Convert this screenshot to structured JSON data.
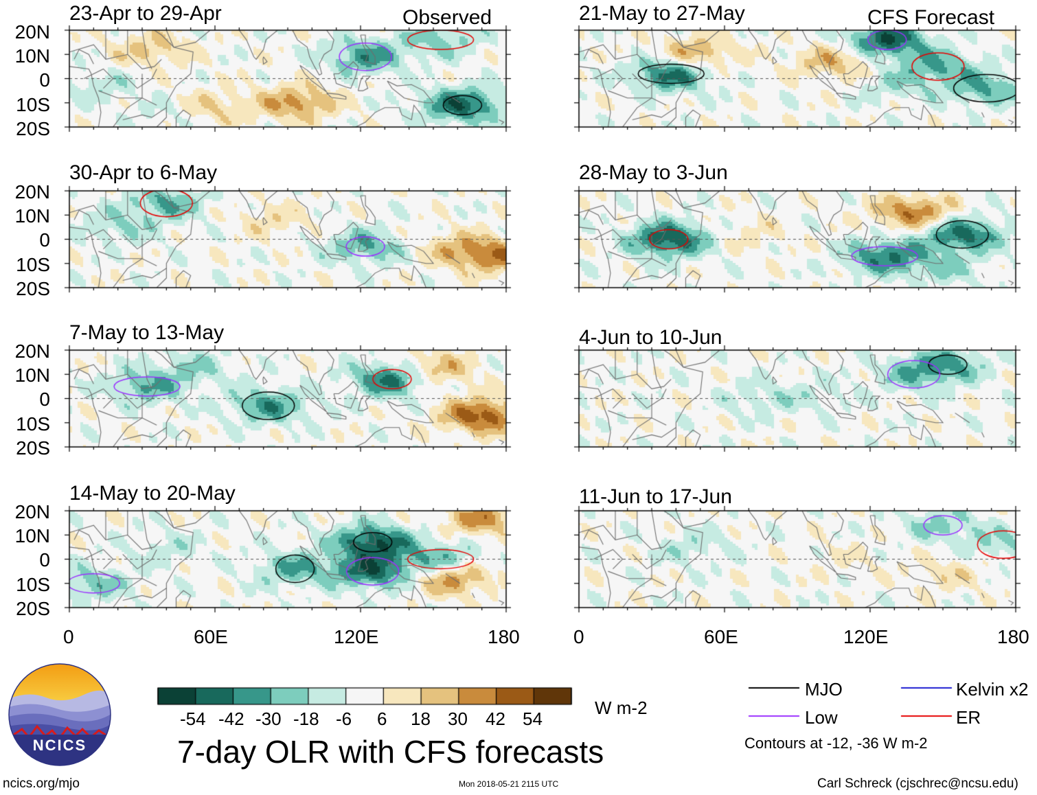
{
  "title": "7-day OLR with CFS forecasts",
  "column_labels": {
    "observed": "Observed",
    "forecast": "CFS Forecast"
  },
  "units": "W m-2",
  "footer": {
    "left": "ncics.org/mjo",
    "center": "Mon 2018-05-21 2115 UTC",
    "right": "Carl Schreck (cjschrec@ncsu.edu)"
  },
  "logo": {
    "text": "NCICS"
  },
  "contour_note": "Contours at -12, -36 W m-2",
  "colors": {
    "map_line": "#6e6e6e",
    "scale": [
      "#0b4136",
      "#18695c",
      "#37978a",
      "#7dcdbd",
      "#c6ebe2",
      "#f6f6f6",
      "#f7e7be",
      "#e5c27e",
      "#c98b3c",
      "#9b5a16",
      "#603609"
    ],
    "mjo": "#000000",
    "low": "#9b30ff",
    "kelvin": "#1b1bd0",
    "er": "#e60000"
  },
  "legend": [
    {
      "name": "MJO",
      "color": "#000000"
    },
    {
      "name": "Kelvin x2",
      "color": "#1b1bd0"
    },
    {
      "name": "Low",
      "color": "#9b30ff"
    },
    {
      "name": "ER",
      "color": "#e60000"
    }
  ],
  "chart_data": {
    "type": "heatmap",
    "variable": "7-day OLR anomaly",
    "units": "W m-2",
    "x_ticks": [
      "0",
      "60E",
      "120E",
      "180"
    ],
    "x_values": [
      0,
      60,
      120,
      180
    ],
    "y_ticks": [
      "20N",
      "10N",
      "0",
      "10S",
      "20S"
    ],
    "y_values": [
      20,
      10,
      0,
      -10,
      -20
    ],
    "xlim": [
      0,
      180
    ],
    "ylim": [
      -20,
      20
    ],
    "colorbar": {
      "levels": [
        -60,
        -48,
        -36,
        -24,
        -12,
        0,
        12,
        24,
        36,
        48,
        60
      ],
      "tick_labels": [
        "-54",
        "-42",
        "-30",
        "-18",
        "-6",
        "6",
        "18",
        "30",
        "42",
        "54"
      ]
    },
    "contour_levels": [
      -12,
      -36
    ],
    "panels": [
      {
        "period": "23-Apr to 29-Apr",
        "source": "Observed",
        "anomalies": [
          [
            162,
            -11,
            -50
          ],
          [
            122,
            9,
            -36
          ],
          [
            153,
            16,
            -24
          ],
          [
            94,
            -10,
            35
          ],
          [
            58,
            -12,
            22
          ],
          [
            34,
            12,
            22
          ],
          [
            13,
            -3,
            -14
          ],
          [
            44,
            -14,
            -12
          ]
        ]
      },
      {
        "period": "30-Apr to 6-May",
        "source": "Observed",
        "anomalies": [
          [
            122,
            -3,
            -30
          ],
          [
            40,
            15,
            -30
          ],
          [
            176,
            -7,
            36
          ],
          [
            160,
            -4,
            22
          ],
          [
            83,
            8,
            14
          ],
          [
            20,
            5,
            -18
          ]
        ]
      },
      {
        "period": "7-May to 13-May",
        "source": "Observed",
        "anomalies": [
          [
            133,
            8,
            -48
          ],
          [
            82,
            -3,
            -36
          ],
          [
            32,
            5,
            -30
          ],
          [
            170,
            -7,
            50
          ],
          [
            150,
            12,
            30
          ],
          [
            52,
            13,
            -18
          ]
        ]
      },
      {
        "period": "14-May to 20-May",
        "source": "Observed",
        "anomalies": [
          [
            125,
            7,
            -54
          ],
          [
            125,
            -5,
            -48
          ],
          [
            153,
            0,
            -30
          ],
          [
            93,
            -4,
            -30
          ],
          [
            10,
            -10,
            -24
          ],
          [
            170,
            17,
            34
          ],
          [
            158,
            -8,
            36
          ],
          [
            40,
            4,
            -12
          ]
        ]
      },
      {
        "period": "21-May to 27-May",
        "source": "CFS Forecast",
        "anomalies": [
          [
            127,
            16,
            -54
          ],
          [
            148,
            5,
            -30
          ],
          [
            38,
            2,
            -48
          ],
          [
            48,
            10,
            32
          ],
          [
            105,
            7,
            26
          ],
          [
            168,
            -4,
            -30
          ],
          [
            130,
            -3,
            -14
          ]
        ]
      },
      {
        "period": "28-May to 3-Jun",
        "source": "CFS Forecast",
        "anomalies": [
          [
            37,
            0,
            -54
          ],
          [
            158,
            2,
            -48
          ],
          [
            126,
            -7,
            -42
          ],
          [
            138,
            11,
            40
          ],
          [
            150,
            -12,
            -18
          ],
          [
            72,
            2,
            10
          ]
        ]
      },
      {
        "period": "4-Jun to 10-Jun",
        "source": "CFS Forecast",
        "anomalies": [
          [
            152,
            14,
            -30
          ],
          [
            138,
            10,
            -22
          ],
          [
            75,
            0,
            -14
          ],
          [
            100,
            2,
            -10
          ]
        ]
      },
      {
        "period": "11-Jun to 17-Jun",
        "source": "CFS Forecast",
        "anomalies": [
          [
            150,
            14,
            -22
          ],
          [
            175,
            6,
            -18
          ],
          [
            47,
            5,
            -14
          ],
          [
            152,
            -6,
            14
          ],
          [
            110,
            0,
            6
          ]
        ]
      }
    ]
  }
}
